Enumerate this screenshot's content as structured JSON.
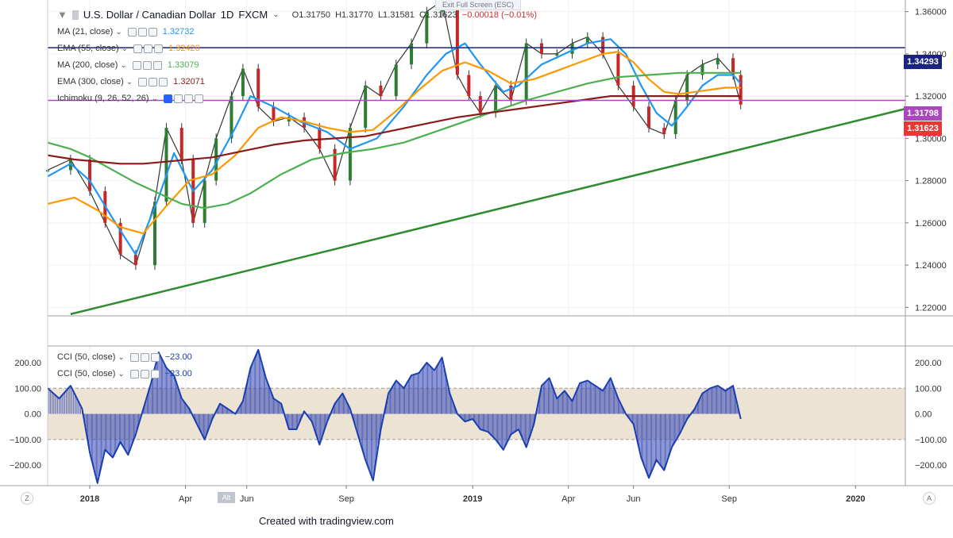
{
  "title": {
    "symbol": "U.S. Dollar / Canadian Dollar",
    "interval": "1D",
    "source": "FXCM",
    "open": "O1.31750",
    "high": "H1.31770",
    "low": "L1.31581",
    "close": "C1.31623",
    "change": "−0.00018 (−0.01%)",
    "exit_fullscreen": "Exit Full Screen (ESC)"
  },
  "legends": {
    "ma21": {
      "label": "MA (21, close)",
      "value": "1.32732",
      "color": "#2196f3"
    },
    "ema55": {
      "label": "EMA (55, close)",
      "value": "1.32426",
      "color": "#ff9800"
    },
    "ma200": {
      "label": "MA (200, close)",
      "value": "1.33079",
      "color": "#4caf50"
    },
    "ema300": {
      "label": "EMA (300, close)",
      "value": "1.32071",
      "color": "#8b1a1a"
    },
    "ichimoku": {
      "label": "Ichimoku (9, 26, 52, 26)"
    },
    "cci1": {
      "label": "CCI (50, close)",
      "value": "−23.00"
    },
    "cci2": {
      "label": "CCI (50, close)",
      "value": "−23.00"
    }
  },
  "price_tags": {
    "blue": {
      "text": "1.34293",
      "color": "#1a237e"
    },
    "purple": {
      "text": "1.31798",
      "color": "#ab47bc"
    },
    "last": {
      "text": "1.31623",
      "color": "#e53935"
    }
  },
  "credit": "Created with tradingview.com",
  "bottom_bar": {
    "left": "Z",
    "right": "A",
    "alt_label": "Alt"
  },
  "chart_data": [
    {
      "type": "line",
      "title": "U.S. Dollar / Canadian Dollar, 1D, FXCM",
      "y_ticks": [
        "1.36000",
        "1.34000",
        "1.32000",
        "1.30000",
        "1.28000",
        "1.26000",
        "1.24000",
        "1.22000"
      ],
      "ylim": [
        1.216,
        1.3655
      ],
      "x_ticks": [
        "2018",
        "Apr",
        "Jun",
        "Sep",
        "2019",
        "Apr",
        "Jun",
        "Sep",
        "2020"
      ],
      "x_tick_positions": [
        0.0,
        0.25,
        0.41,
        0.67,
        1.0,
        1.25,
        1.42,
        1.67,
        2.0
      ],
      "xlim": [
        -0.11,
        2.13
      ],
      "series": [
        {
          "key": "price",
          "color": "#333333",
          "x": [
            -0.11,
            -0.05,
            0.0,
            0.04,
            0.08,
            0.12,
            0.17,
            0.2,
            0.24,
            0.27,
            0.3,
            0.33,
            0.37,
            0.4,
            0.44,
            0.48,
            0.52,
            0.56,
            0.6,
            0.64,
            0.68,
            0.72,
            0.76,
            0.8,
            0.84,
            0.88,
            0.92,
            0.96,
            0.99,
            1.02,
            1.06,
            1.1,
            1.14,
            1.18,
            1.22,
            1.26,
            1.3,
            1.34,
            1.38,
            1.42,
            1.46,
            1.5,
            1.53,
            1.56,
            1.6,
            1.64,
            1.68,
            1.7
          ],
          "values": [
            1.285,
            1.29,
            1.275,
            1.26,
            1.245,
            1.24,
            1.27,
            1.305,
            1.29,
            1.26,
            1.28,
            1.3,
            1.32,
            1.333,
            1.315,
            1.308,
            1.31,
            1.305,
            1.295,
            1.28,
            1.305,
            1.325,
            1.32,
            1.335,
            1.345,
            1.36,
            1.365,
            1.33,
            1.32,
            1.312,
            1.325,
            1.318,
            1.345,
            1.34,
            1.34,
            1.345,
            1.348,
            1.34,
            1.325,
            1.315,
            1.305,
            1.302,
            1.318,
            1.33,
            1.335,
            1.338,
            1.33,
            1.316
          ]
        },
        {
          "key": "ma21",
          "color": "#2196f3",
          "x": [
            -0.11,
            -0.05,
            0.0,
            0.06,
            0.12,
            0.18,
            0.22,
            0.27,
            0.32,
            0.38,
            0.42,
            0.48,
            0.55,
            0.62,
            0.68,
            0.75,
            0.82,
            0.88,
            0.93,
            0.98,
            1.02,
            1.08,
            1.12,
            1.18,
            1.24,
            1.3,
            1.36,
            1.4,
            1.44,
            1.48,
            1.52,
            1.56,
            1.6,
            1.64,
            1.68,
            1.7
          ],
          "values": [
            1.282,
            1.288,
            1.28,
            1.262,
            1.245,
            1.272,
            1.293,
            1.275,
            1.285,
            1.305,
            1.32,
            1.315,
            1.308,
            1.303,
            1.295,
            1.3,
            1.315,
            1.33,
            1.34,
            1.345,
            1.335,
            1.322,
            1.325,
            1.335,
            1.34,
            1.345,
            1.347,
            1.34,
            1.325,
            1.312,
            1.306,
            1.315,
            1.325,
            1.33,
            1.33,
            1.326
          ]
        },
        {
          "key": "ema55",
          "color": "#ff9800",
          "x": [
            -0.11,
            -0.04,
            0.02,
            0.08,
            0.14,
            0.2,
            0.26,
            0.32,
            0.38,
            0.44,
            0.5,
            0.56,
            0.62,
            0.68,
            0.74,
            0.8,
            0.86,
            0.92,
            0.98,
            1.04,
            1.1,
            1.16,
            1.22,
            1.28,
            1.34,
            1.38,
            1.42,
            1.46,
            1.5,
            1.54,
            1.58,
            1.62,
            1.66,
            1.7
          ],
          "values": [
            1.269,
            1.272,
            1.266,
            1.258,
            1.255,
            1.268,
            1.28,
            1.283,
            1.292,
            1.305,
            1.31,
            1.308,
            1.305,
            1.303,
            1.304,
            1.313,
            1.323,
            1.332,
            1.336,
            1.332,
            1.326,
            1.328,
            1.332,
            1.336,
            1.34,
            1.341,
            1.336,
            1.328,
            1.322,
            1.321,
            1.322,
            1.323,
            1.324,
            1.324
          ]
        },
        {
          "key": "ma200",
          "color": "#4caf50",
          "x": [
            -0.11,
            -0.05,
            0.0,
            0.06,
            0.12,
            0.18,
            0.24,
            0.3,
            0.36,
            0.42,
            0.5,
            0.58,
            0.66,
            0.74,
            0.82,
            0.9,
            0.98,
            1.06,
            1.14,
            1.22,
            1.3,
            1.38,
            1.46,
            1.54,
            1.62,
            1.7
          ],
          "values": [
            1.298,
            1.295,
            1.291,
            1.285,
            1.279,
            1.274,
            1.269,
            1.267,
            1.269,
            1.274,
            1.283,
            1.29,
            1.293,
            1.295,
            1.298,
            1.303,
            1.308,
            1.313,
            1.318,
            1.322,
            1.326,
            1.329,
            1.33,
            1.331,
            1.331,
            1.331
          ]
        },
        {
          "key": "ema300",
          "color": "#8b1a1a",
          "x": [
            -0.11,
            -0.04,
            0.02,
            0.08,
            0.14,
            0.2,
            0.26,
            0.32,
            0.4,
            0.48,
            0.56,
            0.64,
            0.72,
            0.8,
            0.88,
            0.96,
            1.04,
            1.12,
            1.2,
            1.28,
            1.36,
            1.44,
            1.52,
            1.6,
            1.7
          ],
          "values": [
            1.292,
            1.29,
            1.289,
            1.288,
            1.288,
            1.289,
            1.29,
            1.291,
            1.294,
            1.297,
            1.299,
            1.3,
            1.301,
            1.304,
            1.307,
            1.31,
            1.312,
            1.314,
            1.316,
            1.318,
            1.32,
            1.32,
            1.32,
            1.32,
            1.32
          ]
        },
        {
          "key": "trendline",
          "color": "#2e8b2e",
          "x": [
            -0.05,
            2.13
          ],
          "values": [
            1.2168,
            1.314
          ]
        }
      ],
      "horizontal_lines": [
        {
          "key": "blue",
          "value": 1.34293,
          "color": "#1a237e"
        },
        {
          "key": "purple",
          "value": 1.31798,
          "color": "#ab47bc"
        }
      ]
    },
    {
      "type": "area",
      "title": "CCI (50, close)",
      "y_ticks": [
        "200.00",
        "100.00",
        "0.00",
        "−100.00",
        "−200.00"
      ],
      "ylim": [
        -280,
        265
      ],
      "band": [
        -100,
        100
      ],
      "xlim": [
        -0.11,
        2.13
      ],
      "x": [
        -0.11,
        -0.08,
        -0.05,
        -0.02,
        0.0,
        0.02,
        0.04,
        0.06,
        0.08,
        0.1,
        0.12,
        0.14,
        0.16,
        0.18,
        0.2,
        0.22,
        0.24,
        0.26,
        0.28,
        0.3,
        0.32,
        0.34,
        0.36,
        0.38,
        0.4,
        0.42,
        0.44,
        0.46,
        0.48,
        0.5,
        0.52,
        0.54,
        0.56,
        0.58,
        0.6,
        0.62,
        0.64,
        0.66,
        0.68,
        0.7,
        0.72,
        0.74,
        0.76,
        0.78,
        0.8,
        0.82,
        0.84,
        0.86,
        0.88,
        0.9,
        0.92,
        0.94,
        0.96,
        0.98,
        1.0,
        1.02,
        1.04,
        1.06,
        1.08,
        1.1,
        1.12,
        1.14,
        1.16,
        1.18,
        1.2,
        1.22,
        1.24,
        1.26,
        1.28,
        1.3,
        1.32,
        1.34,
        1.36,
        1.38,
        1.4,
        1.42,
        1.44,
        1.46,
        1.48,
        1.5,
        1.52,
        1.54,
        1.56,
        1.58,
        1.6,
        1.62,
        1.64,
        1.66,
        1.68,
        1.7
      ],
      "values": [
        100,
        60,
        110,
        20,
        -150,
        -270,
        -140,
        -170,
        -110,
        -160,
        -80,
        20,
        120,
        240,
        180,
        150,
        60,
        20,
        -40,
        -100,
        -20,
        40,
        20,
        0,
        50,
        180,
        250,
        140,
        60,
        40,
        -60,
        -60,
        10,
        -30,
        -120,
        -30,
        40,
        80,
        20,
        -80,
        -180,
        -260,
        -60,
        80,
        130,
        100,
        150,
        160,
        200,
        170,
        220,
        80,
        0,
        -30,
        -20,
        -60,
        -70,
        -100,
        -140,
        -80,
        -60,
        -130,
        -40,
        110,
        140,
        60,
        90,
        50,
        120,
        130,
        110,
        90,
        140,
        60,
        0,
        -40,
        -170,
        -250,
        -180,
        -220,
        -130,
        -80,
        -20,
        20,
        80,
        100,
        110,
        90,
        110,
        -20
      ],
      "color": "#1a3fb0"
    }
  ]
}
